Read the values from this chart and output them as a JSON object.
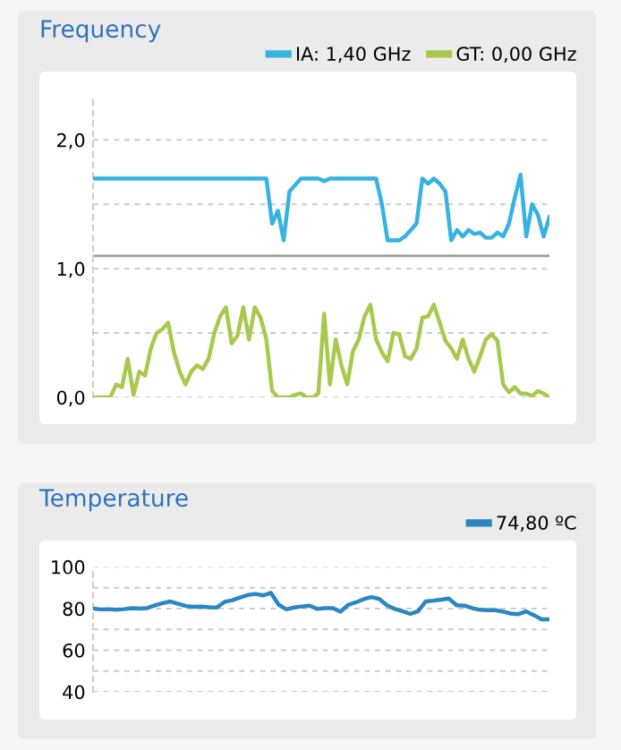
{
  "chart_data": [
    {
      "type": "line",
      "title": "Frequency",
      "legend": "top right",
      "grid": "y",
      "marker": "none",
      "line_style": "solid",
      "categories": [
        null,
        null,
        null,
        null,
        null,
        null,
        null,
        null,
        null,
        null,
        null,
        null,
        null,
        null,
        null,
        null,
        null,
        null,
        null,
        null,
        null,
        null,
        null,
        null,
        null,
        null,
        null,
        null,
        null,
        null,
        null,
        null,
        null,
        null,
        null,
        null,
        null,
        null,
        null,
        null,
        null,
        null,
        null,
        null,
        null,
        null,
        null,
        null,
        null,
        null,
        null,
        null,
        null,
        null,
        null,
        null,
        null,
        null,
        null,
        null,
        null,
        null,
        null,
        null,
        null,
        null,
        null,
        null,
        null,
        null,
        null,
        null,
        null,
        null,
        null,
        null,
        null,
        null,
        null,
        null
      ],
      "series": [
        {
          "name": "IA: 1,40 GHz",
          "color": "#36b3e0",
          "values": [
            1.7,
            1.7,
            1.7,
            1.7,
            1.7,
            1.7,
            1.7,
            1.7,
            1.7,
            1.7,
            1.7,
            1.7,
            1.7,
            1.7,
            1.7,
            1.7,
            1.7,
            1.7,
            1.7,
            1.7,
            1.7,
            1.7,
            1.7,
            1.7,
            1.7,
            1.7,
            1.7,
            1.7,
            1.7,
            1.7,
            1.7,
            1.35,
            1.45,
            1.22,
            1.6,
            1.65,
            1.7,
            1.7,
            1.7,
            1.7,
            1.68,
            1.7,
            1.7,
            1.7,
            1.7,
            1.7,
            1.7,
            1.7,
            1.7,
            1.7,
            1.5,
            1.22,
            1.22,
            1.22,
            1.25,
            1.3,
            1.35,
            1.7,
            1.66,
            1.7,
            1.66,
            1.6,
            1.22,
            1.3,
            1.25,
            1.3,
            1.27,
            1.28,
            1.24,
            1.24,
            1.28,
            1.25,
            1.35,
            1.55,
            1.73,
            1.25,
            1.5,
            1.42,
            1.25,
            1.4
          ]
        },
        {
          "name": "GT: 0,00 GHz",
          "color": "#a8c94e",
          "values": [
            0,
            0,
            0,
            0,
            0.1,
            0.08,
            0.3,
            0.02,
            0.2,
            0.17,
            0.38,
            0.5,
            0.53,
            0.58,
            0.35,
            0.2,
            0.1,
            0.2,
            0.25,
            0.22,
            0.3,
            0.5,
            0.63,
            0.7,
            0.42,
            0.48,
            0.7,
            0.45,
            0.7,
            0.62,
            0.45,
            0.05,
            0,
            0,
            0,
            0.02,
            0.03,
            0,
            0,
            0.03,
            0.65,
            0.1,
            0.45,
            0.25,
            0.1,
            0.36,
            0.45,
            0.63,
            0.72,
            0.45,
            0.35,
            0.28,
            0.5,
            0.49,
            0.32,
            0.3,
            0.38,
            0.62,
            0.63,
            0.72,
            0.58,
            0.44,
            0.38,
            0.3,
            0.45,
            0.3,
            0.2,
            0.32,
            0.45,
            0.49,
            0.44,
            0.1,
            0.04,
            0.08,
            0.03,
            0.03,
            0.01,
            0.05,
            0.03,
            0
          ]
        }
      ],
      "ylim": [
        0,
        2.35
      ],
      "yticks": [
        {
          "value": 0,
          "label": "0,0"
        },
        {
          "value": 0.5,
          "label": null
        },
        {
          "value": 1,
          "label": "1,0"
        },
        {
          "value": 1.5,
          "label": null
        },
        {
          "value": 2,
          "label": "2,0"
        }
      ],
      "ref_lines": [
        {
          "axis": "y",
          "value": 1.1,
          "color": "#9e9e9e"
        }
      ]
    },
    {
      "type": "line",
      "title": "Temperature",
      "legend": "top right",
      "grid": "y",
      "marker": "none",
      "line_style": "solid",
      "categories": [
        null,
        null,
        null,
        null,
        null,
        null,
        null,
        null,
        null,
        null,
        null,
        null,
        null,
        null,
        null,
        null,
        null,
        null,
        null,
        null,
        null,
        null,
        null,
        null,
        null,
        null,
        null,
        null,
        null,
        null,
        null,
        null,
        null,
        null,
        null,
        null,
        null,
        null,
        null,
        null,
        null,
        null,
        null,
        null,
        null,
        null,
        null,
        null,
        null,
        null,
        null,
        null,
        null,
        null,
        null,
        null,
        null,
        null,
        null,
        null
      ],
      "series": [
        {
          "name": "74,80 ºC",
          "color": "#2b86c2",
          "values": [
            80,
            79.6,
            79.7,
            79.4,
            79.7,
            80.2,
            80,
            80.2,
            81.5,
            82.6,
            83.4,
            82.3,
            81.2,
            80.8,
            80.9,
            80.6,
            80.5,
            83.2,
            84,
            85.3,
            86.5,
            87,
            86.3,
            87.5,
            81.8,
            79.6,
            80.5,
            81,
            81.4,
            79.8,
            80.2,
            80.2,
            78.5,
            81.8,
            83,
            84.5,
            85.5,
            84.6,
            81.6,
            79.8,
            78.7,
            77.4,
            78.6,
            83.4,
            83.8,
            84.3,
            84.8,
            81.6,
            81.4,
            80.2,
            79.4,
            79.2,
            79.2,
            78.5,
            77.6,
            77.3,
            78.6,
            76.8,
            74.8,
            74.8
          ]
        }
      ],
      "ylim": [
        40,
        100
      ],
      "yticks": [
        40,
        {
          "value": 50,
          "label": null
        },
        60,
        {
          "value": 70,
          "label": null
        },
        80,
        {
          "value": 90,
          "label": null
        },
        100
      ]
    }
  ]
}
